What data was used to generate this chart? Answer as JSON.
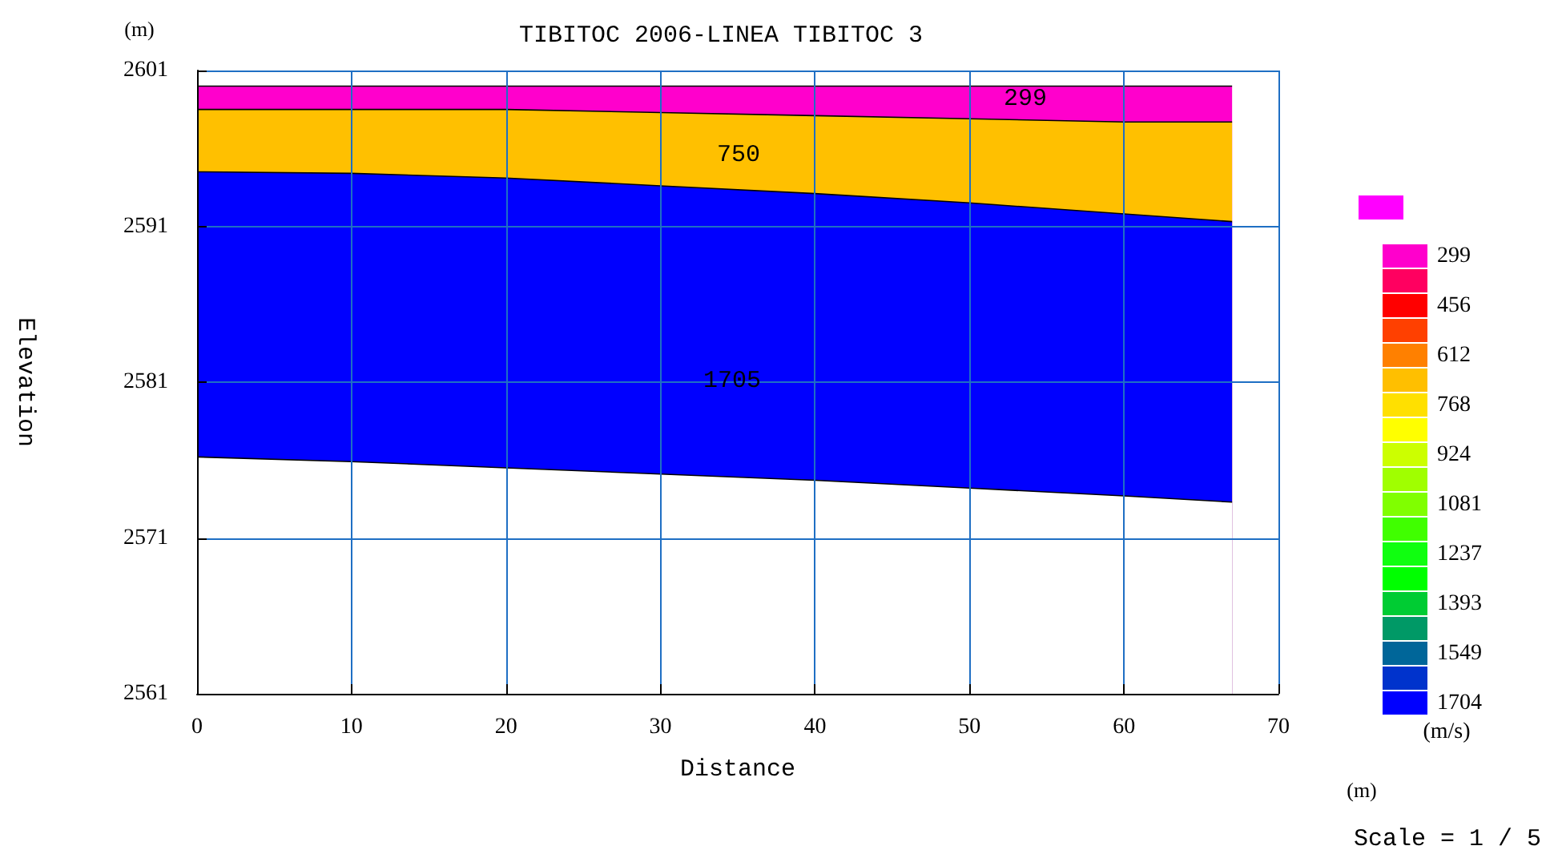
{
  "chart_data": {
    "type": "area",
    "title": "TIBITOC 2006-LINEA TIBITOC 3",
    "xlabel": "Distance",
    "ylabel": "Elevation",
    "clabel": "(m/s)",
    "x": [
      0,
      10,
      20,
      30,
      40,
      50,
      60,
      67
    ],
    "series": [
      {
        "color": "#ff00cc",
        "values": [
          2600,
          2600,
          2600,
          2600,
          2600,
          2600,
          2600,
          2600
        ]
      },
      {
        "color": "#ffc000",
        "values": [
          2598.5,
          2598.5,
          2598.5,
          2598.3,
          2598.1,
          2597.9,
          2597.7,
          2597.7
        ]
      },
      {
        "color": "#0000ff",
        "values": [
          2594.5,
          2594.4,
          2594.1,
          2593.6,
          2593.1,
          2592.5,
          2591.8,
          2591.3
        ]
      },
      {
        "color": "#ffffff",
        "values": [
          2576.2,
          2575.9,
          2575.5,
          2575.1,
          2574.7,
          2574.2,
          2573.7,
          2573.3
        ]
      }
    ],
    "annotations": [
      "299",
      "750",
      "1705",
      "(m)",
      "(m)",
      "Scale = 1 / 5"
    ],
    "cticks": [
      299,
      456,
      612,
      768,
      924,
      1081,
      1237,
      1393,
      1549,
      1704
    ],
    "colors": [
      "#ff00ff",
      "#ff00cc",
      "#ff0060",
      "#ff0000",
      "#ff4000",
      "#ff8000",
      "#ffbf00",
      "#ffe000",
      "#ffff00",
      "#ccff00",
      "#a0ff00",
      "#80ff00",
      "#40ff00",
      "#10ff10",
      "#00ff00",
      "#00cc33",
      "#009966",
      "#006699",
      "#0033cc",
      "#0000ff"
    ],
    "xlim": [
      0,
      70
    ],
    "xticks": [
      0,
      10,
      20,
      30,
      40,
      50,
      60,
      70
    ],
    "ylim": [
      2561,
      2601
    ],
    "yticks": [
      2561,
      2571,
      2581,
      2591,
      2601
    ],
    "grid": true
  }
}
